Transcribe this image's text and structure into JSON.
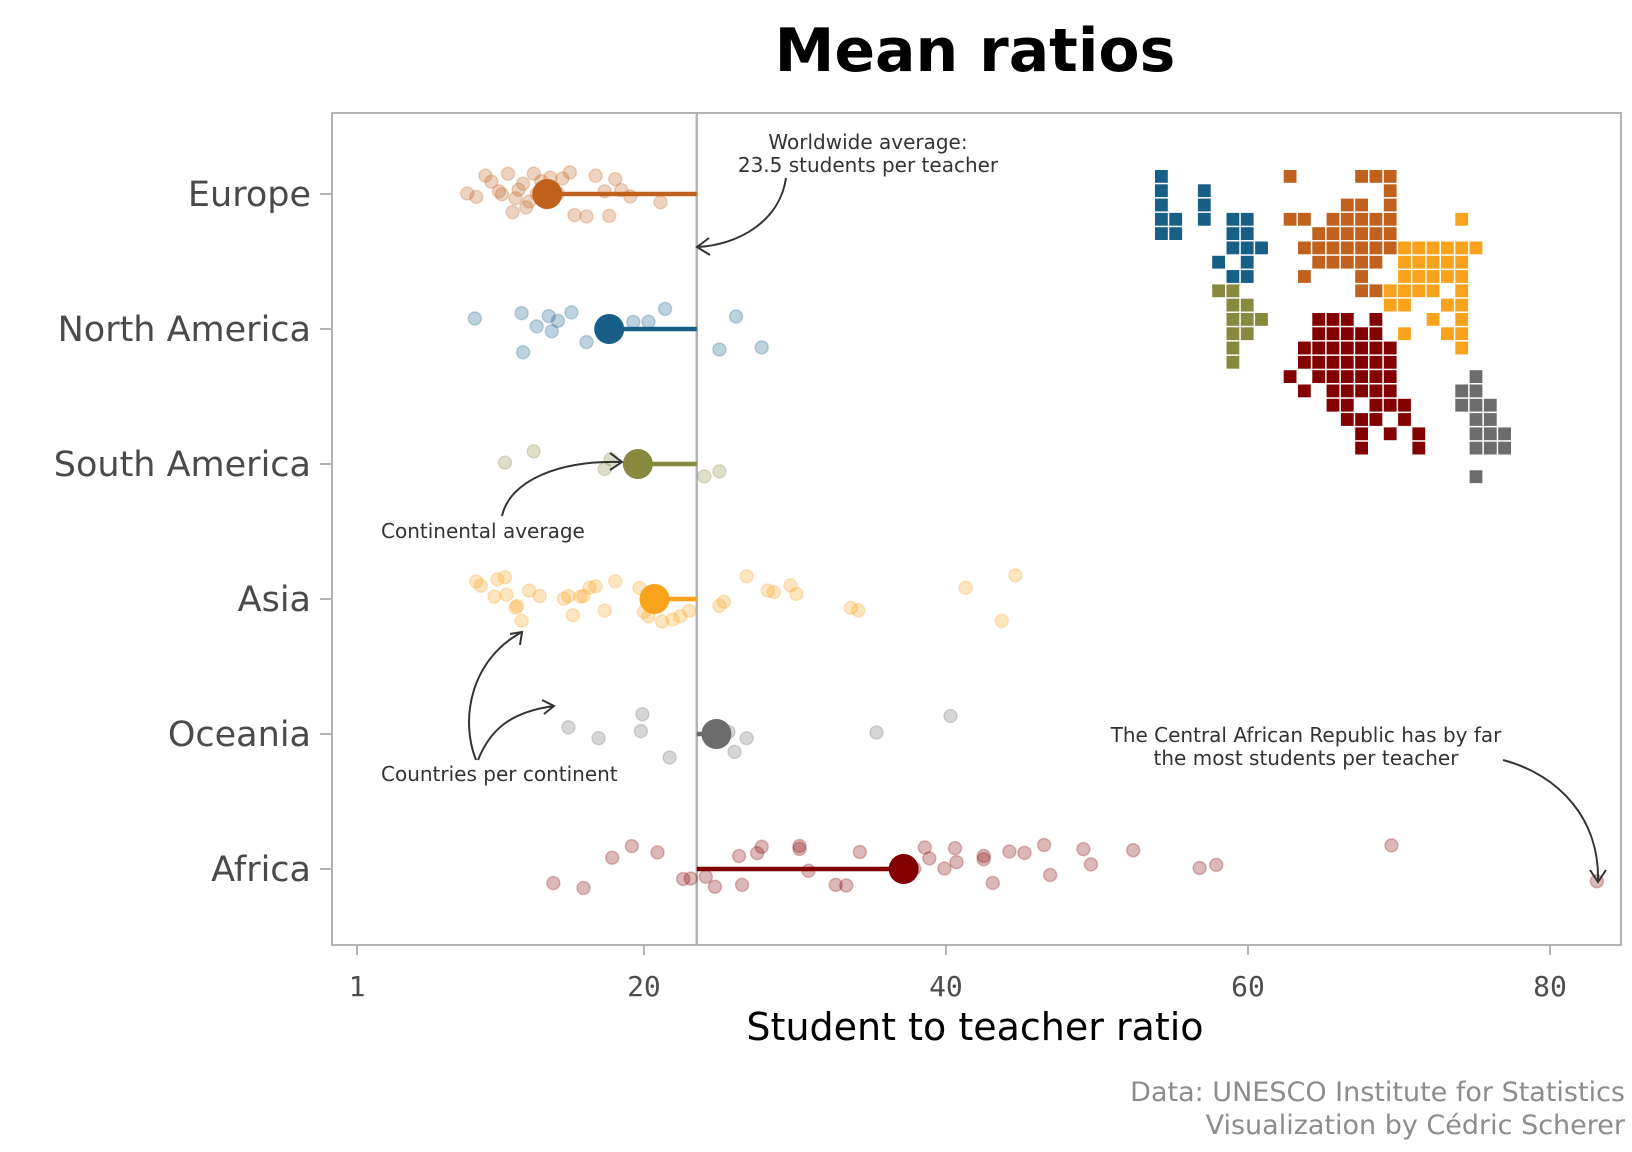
{
  "chart_data": {
    "type": "scatter",
    "title": "Mean ratios",
    "xlabel": "Student to teacher ratio",
    "ylabel": "",
    "xlim": [
      0,
      84
    ],
    "x_ticks": [
      1,
      20,
      40,
      60,
      80
    ],
    "worldwide_average": 23.5,
    "series": [
      {
        "name": "Europe",
        "color": "#c0621e",
        "mean": 13.6,
        "values": [
          8.3,
          8.9,
          9.5,
          9.9,
          10.4,
          10.6,
          11.0,
          11.3,
          11.5,
          11.7,
          12.0,
          12.2,
          12.4,
          12.7,
          12.9,
          13.2,
          13.5,
          13.8,
          14.0,
          14.3,
          14.6,
          15.1,
          15.4,
          16.2,
          16.8,
          17.4,
          17.7,
          18.1,
          18.5,
          19.1,
          21.1
        ]
      },
      {
        "name": "North America",
        "color": "#175f86",
        "mean": 17.7,
        "values": [
          8.8,
          11.9,
          12.0,
          12.9,
          13.7,
          13.9,
          14.3,
          15.2,
          16.2,
          19.3,
          20.3,
          21.4,
          25.0,
          26.1,
          27.8
        ]
      },
      {
        "name": "South America",
        "color": "#87893f",
        "mean": 19.6,
        "values": [
          10.8,
          12.7,
          17.4,
          17.8,
          24.0,
          25.0
        ]
      },
      {
        "name": "Asia",
        "color": "#f9a21c",
        "mean": 20.7,
        "values": [
          8.9,
          9.2,
          10.1,
          10.3,
          10.8,
          10.9,
          11.5,
          11.6,
          11.9,
          12.4,
          13.1,
          14.7,
          15.0,
          15.3,
          15.8,
          16.0,
          16.4,
          16.8,
          17.4,
          18.1,
          19.7,
          20.0,
          20.3,
          21.2,
          21.9,
          22.4,
          23.0,
          25.0,
          25.3,
          26.8,
          28.2,
          28.6,
          29.7,
          30.1,
          33.7,
          34.2,
          41.3,
          43.7,
          44.6
        ]
      },
      {
        "name": "Oceania",
        "color": "#6c6c6c",
        "mean": 24.8,
        "values": [
          15.0,
          17.0,
          19.8,
          19.9,
          21.7,
          25.6,
          26.0,
          26.8,
          35.4,
          40.3
        ]
      },
      {
        "name": "Africa",
        "color": "#820000",
        "mean": 37.2,
        "values": [
          14.0,
          16.0,
          17.9,
          19.2,
          20.9,
          22.6,
          23.1,
          24.1,
          24.7,
          26.3,
          26.5,
          27.5,
          27.8,
          30.3,
          30.3,
          30.9,
          32.7,
          33.4,
          34.3,
          37.9,
          38.6,
          38.9,
          39.9,
          40.6,
          40.7,
          42.5,
          42.5,
          43.1,
          44.2,
          45.2,
          46.5,
          46.9,
          49.1,
          49.6,
          52.4,
          56.8,
          57.9,
          69.5,
          83.1
        ]
      }
    ],
    "annotations": [
      {
        "text_lines": [
          "Worldwide average:",
          "23.5 students per teacher"
        ]
      },
      {
        "text_lines": [
          "Continental average"
        ]
      },
      {
        "text_lines": [
          "Countries per continent"
        ]
      },
      {
        "text_lines": [
          "The Central African Republic has by far",
          "the most students per teacher"
        ]
      }
    ],
    "caption_lines": [
      "Data: UNESCO Institute for Statistics",
      "Visualization by Cédric Scherer"
    ]
  }
}
